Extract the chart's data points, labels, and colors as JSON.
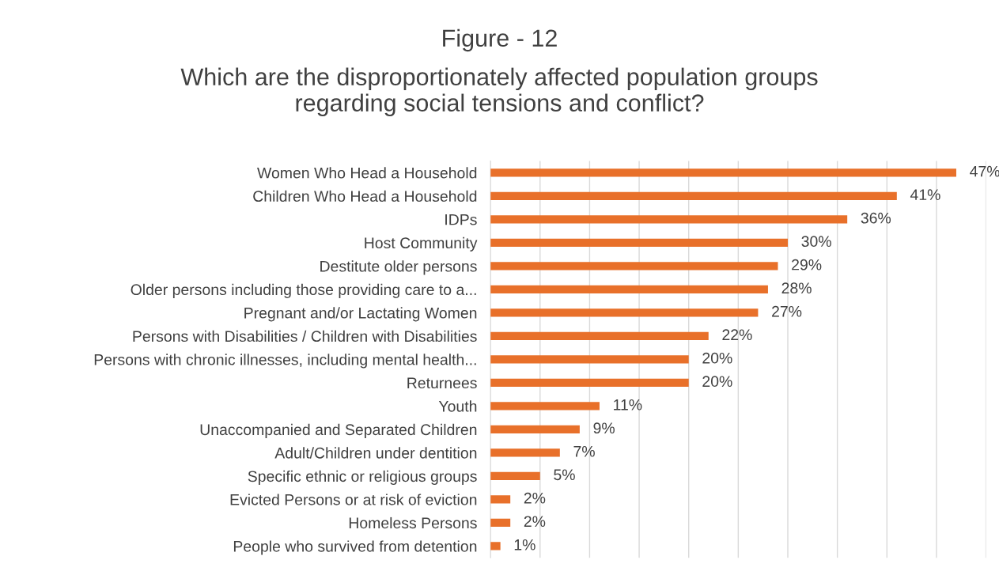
{
  "chart_data": {
    "type": "bar",
    "orientation": "horizontal",
    "title": "Figure - 12",
    "subtitle": "Which are the disproportionately affected population groups\nregarding social tensions and conflict?",
    "categories": [
      "Women Who Head a Household",
      "Children Who Head a Household",
      "IDPs",
      "Host Community",
      "Destitute older persons",
      "Older persons including those providing care to a...",
      "Pregnant and/or Lactating Women",
      "Persons with Disabilities / Children with Disabilities",
      "Persons with chronic illnesses, including mental health...",
      "Returnees",
      "Youth",
      "Unaccompanied and Separated Children",
      "Adult/Children under dentition",
      "Specific ethnic or religious groups",
      "Evicted Persons or at risk of eviction",
      "Homeless Persons",
      "People who survived from detention"
    ],
    "values": [
      47,
      41,
      36,
      30,
      29,
      28,
      27,
      22,
      20,
      20,
      11,
      9,
      7,
      5,
      2,
      2,
      1
    ],
    "value_labels": [
      "47%",
      "41%",
      "36%",
      "30%",
      "29%",
      "28%",
      "27%",
      "22%",
      "20%",
      "20%",
      "11%",
      "9%",
      "7%",
      "5%",
      "2%",
      "2%",
      "1%"
    ],
    "color": "#e8702a",
    "xlim": [
      0,
      50
    ],
    "xticks": [
      {
        "value": 0,
        "label": null
      },
      {
        "value": 5,
        "label": null
      },
      {
        "value": 10,
        "label": null
      },
      {
        "value": 15,
        "label": null
      },
      {
        "value": 20,
        "label": null
      },
      {
        "value": 25,
        "label": null
      },
      {
        "value": 30,
        "label": null
      },
      {
        "value": 35,
        "label": null
      },
      {
        "value": 40,
        "label": null
      },
      {
        "value": 45,
        "label": null
      },
      {
        "value": 50,
        "label": null
      }
    ],
    "grid": "x",
    "tick_labels": "y"
  }
}
